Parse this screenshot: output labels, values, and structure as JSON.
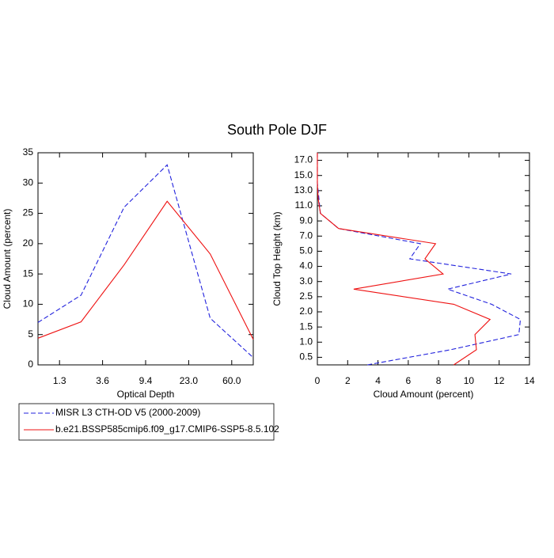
{
  "title": "South Pole DJF",
  "chart_data": [
    {
      "type": "line",
      "orientation": "vertical",
      "x_label": "Optical Depth",
      "y_label": "Cloud Amount (percent)",
      "x": [
        0,
        1,
        2,
        3,
        4,
        5
      ],
      "xlim": [
        0,
        5
      ],
      "xticks": [
        {
          "value": 0.5,
          "label": "1.3"
        },
        {
          "value": 1.5,
          "label": "3.6"
        },
        {
          "value": 2.5,
          "label": "9.4"
        },
        {
          "value": 3.5,
          "label": "23.0"
        },
        {
          "value": 4.5,
          "label": "60.0"
        }
      ],
      "ylim": [
        0,
        35
      ],
      "yticks": [
        0,
        5,
        10,
        15,
        20,
        25,
        30,
        35
      ],
      "series": [
        {
          "name": "MISR L3 CTH-OD V5 (2000-2009)",
          "color": "#2222dd",
          "dash": true,
          "values": [
            7,
            11.5,
            26,
            33,
            7.7,
            1.2
          ]
        },
        {
          "name": "b.e21.BSSP585cmip6.f09_g17.CMIP6-SSP5-8.5.102",
          "color": "#ee1111",
          "dash": false,
          "values": [
            4.4,
            7.1,
            16.5,
            27,
            18.3,
            4.2
          ]
        }
      ]
    },
    {
      "type": "line",
      "orientation": "horizontal",
      "x_label": "Cloud Amount (percent)",
      "y_label": "Cloud Top Height (km)",
      "y": [
        0,
        1,
        2,
        3,
        4,
        5,
        6,
        7,
        8,
        9,
        10,
        11,
        12,
        13,
        14
      ],
      "xlim": [
        0,
        14
      ],
      "xticks": [
        0,
        2,
        4,
        6,
        8,
        10,
        12,
        14
      ],
      "ylim": [
        0,
        14
      ],
      "yticks": [
        {
          "value": 0.5,
          "label": "0.5"
        },
        {
          "value": 1.5,
          "label": "1.0"
        },
        {
          "value": 2.5,
          "label": "1.5"
        },
        {
          "value": 3.5,
          "label": "2.0"
        },
        {
          "value": 4.5,
          "label": "2.5"
        },
        {
          "value": 5.5,
          "label": "3.0"
        },
        {
          "value": 6.5,
          "label": "4.0"
        },
        {
          "value": 7.5,
          "label": "5.0"
        },
        {
          "value": 8.5,
          "label": "7.0"
        },
        {
          "value": 9.5,
          "label": "9.0"
        },
        {
          "value": 10.5,
          "label": "11.0"
        },
        {
          "value": 11.5,
          "label": "13.0"
        },
        {
          "value": 12.5,
          "label": "15.0"
        },
        {
          "value": 13.5,
          "label": "17.0"
        }
      ],
      "series": [
        {
          "color": "#2222dd",
          "dash": true,
          "values": [
            3.3,
            8.8,
            13.3,
            13.4,
            11.5,
            8.6,
            12.8,
            6.1,
            6.8,
            1.4,
            0.2,
            0.1,
            0,
            0,
            0
          ]
        },
        {
          "color": "#ee1111",
          "dash": false,
          "values": [
            9.0,
            10.5,
            10.4,
            11.4,
            9.0,
            2.4,
            8.3,
            7.1,
            7.8,
            1.4,
            0.2,
            0.05,
            0,
            0,
            0
          ]
        }
      ]
    }
  ]
}
